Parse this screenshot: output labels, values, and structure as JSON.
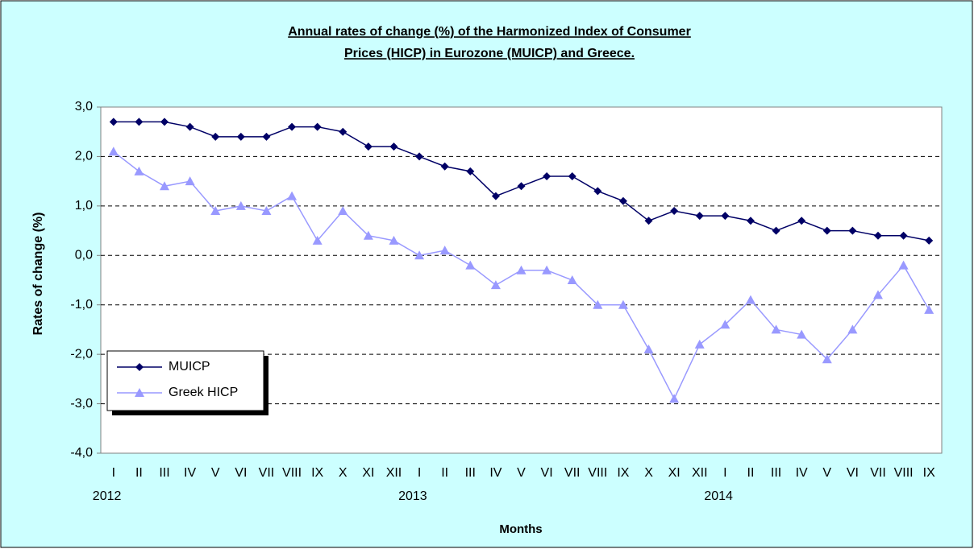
{
  "chart_data": {
    "type": "line",
    "title": [
      "Annual rates of change (%) of the Harmonized Index of Consumer",
      "Prices (HICP) in Eurozone (MUICP) and Greece."
    ],
    "y_label": "Rates of change (%)",
    "x_label": "Months",
    "categories": [
      "I",
      "II",
      "III",
      "IV",
      "V",
      "VI",
      "VII",
      "VIII",
      "IX",
      "X",
      "XI",
      "XII",
      "I",
      "II",
      "III",
      "IV",
      "V",
      "VI",
      "VII",
      "VIII",
      "IX",
      "X",
      "XI",
      "XII",
      "I",
      "II",
      "III",
      "IV",
      "V",
      "VI",
      "VII",
      "VIII",
      "IX"
    ],
    "years": [
      "2012",
      "2013",
      "2014"
    ],
    "series": [
      {
        "name": "MUICP",
        "color": "#000066",
        "marker": "diamond",
        "values": [
          2.7,
          2.7,
          2.7,
          2.6,
          2.4,
          2.4,
          2.4,
          2.6,
          2.6,
          2.5,
          2.2,
          2.2,
          2.0,
          1.8,
          1.7,
          1.2,
          1.4,
          1.6,
          1.6,
          1.3,
          1.1,
          0.7,
          0.9,
          0.8,
          0.8,
          0.7,
          0.5,
          0.7,
          0.5,
          0.5,
          0.4,
          0.4,
          0.3
        ]
      },
      {
        "name": "Greek HICP",
        "color": "#9999ff",
        "marker": "triangle",
        "values": [
          2.1,
          1.7,
          1.4,
          1.5,
          0.9,
          1.0,
          0.9,
          1.2,
          0.3,
          0.9,
          0.4,
          0.3,
          0.0,
          0.1,
          -0.2,
          -0.6,
          -0.3,
          -0.3,
          -0.5,
          -1.0,
          -1.0,
          -1.9,
          -2.9,
          -1.8,
          -1.4,
          -0.9,
          -1.5,
          -1.6,
          -2.1,
          -1.5,
          -0.8,
          -0.2,
          -1.1
        ]
      }
    ],
    "ylim": [
      -4,
      3
    ],
    "yticks": [
      {
        "value": -4,
        "label": "-4,0"
      },
      {
        "value": -3,
        "label": "-3,0"
      },
      {
        "value": -2,
        "label": "-2,0"
      },
      {
        "value": -1,
        "label": "-1,0"
      },
      {
        "value": 0,
        "label": "0,0"
      },
      {
        "value": 1,
        "label": "1,0"
      },
      {
        "value": 2,
        "label": "2,0"
      },
      {
        "value": 3,
        "label": "3,0"
      }
    ],
    "grid": true,
    "legend": "lower left"
  }
}
